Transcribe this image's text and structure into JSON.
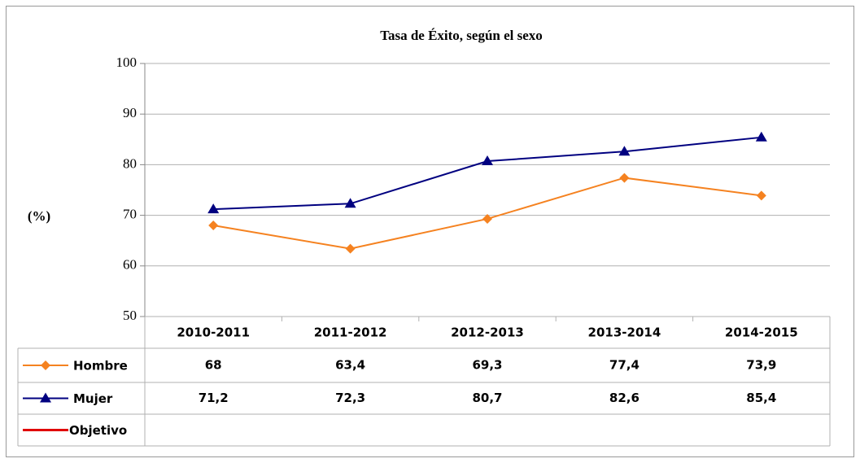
{
  "chart_data": {
    "type": "line",
    "title": "Tasa de Éxito, según el sexo",
    "y_label": "(%)",
    "categories": [
      "2010-2011",
      "2011-2012",
      "2012-2013",
      "2013-2014",
      "2014-2015"
    ],
    "series": [
      {
        "name": "Hombre",
        "color": "#f58220",
        "marker": "diamond",
        "values": [
          68,
          63.4,
          69.3,
          77.4,
          73.9
        ],
        "value_labels": [
          "68",
          "63,4",
          "69,3",
          "77,4",
          "73,9"
        ]
      },
      {
        "name": "Mujer",
        "color": "#000080",
        "marker": "triangle",
        "values": [
          71.2,
          72.3,
          80.7,
          82.6,
          85.4
        ],
        "value_labels": [
          "71,2",
          "72,3",
          "80,7",
          "82,6",
          "85,4"
        ]
      },
      {
        "name": "Objetivo",
        "color": "#e00000",
        "values": [
          null,
          null,
          null,
          null,
          null
        ]
      }
    ],
    "ylim": [
      50,
      100
    ],
    "yticks": [
      50,
      60,
      70,
      80,
      90,
      100
    ],
    "grid": true
  }
}
